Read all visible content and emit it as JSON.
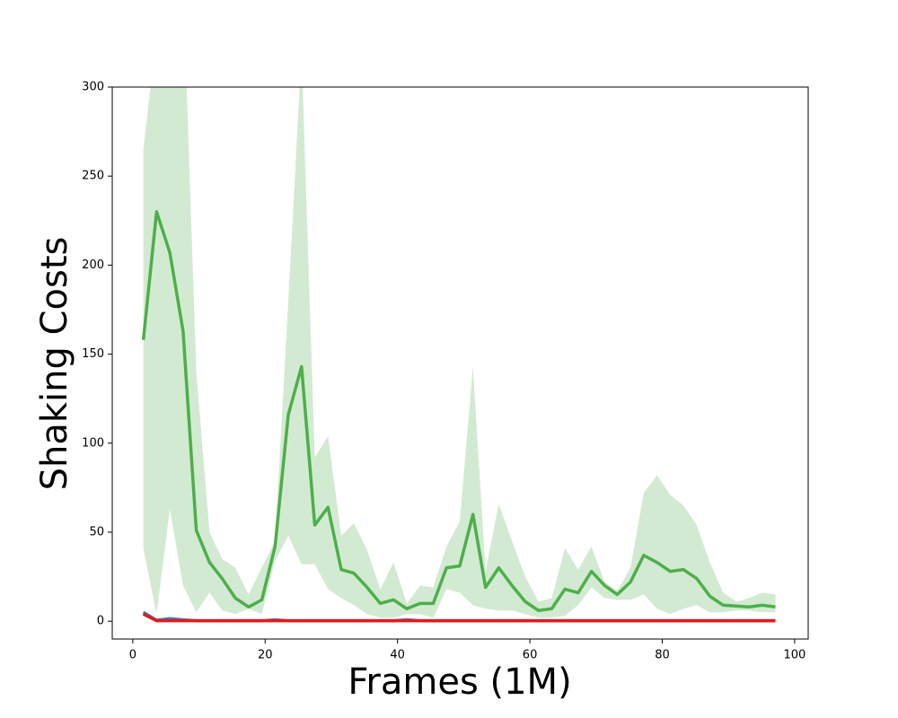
{
  "chart_data": {
    "type": "line",
    "xlabel": "Frames (1M)",
    "ylabel": "Shaking Costs",
    "x": [
      1.6,
      3.6,
      5.6,
      7.6,
      9.6,
      11.6,
      13.5,
      15.5,
      17.5,
      19.5,
      21.5,
      23.5,
      25.5,
      27.5,
      29.5,
      31.5,
      33.4,
      35.4,
      37.4,
      39.4,
      41.4,
      43.4,
      45.4,
      47.4,
      49.4,
      51.4,
      53.3,
      55.3,
      57.3,
      59.3,
      61.3,
      63.3,
      65.3,
      67.3,
      69.3,
      71.3,
      73.2,
      75.2,
      77.2,
      79.2,
      81.2,
      83.2,
      85.2,
      87.2,
      89.2,
      91.2,
      93.1,
      95.1,
      97.1
    ],
    "series": [
      {
        "color": "#4daf4a",
        "band_color": "#d3ead2",
        "values": [
          158,
          230,
          207,
          163,
          51,
          33,
          24,
          13,
          8,
          12,
          42,
          116,
          143,
          54,
          64,
          29,
          27,
          19,
          10,
          12,
          7,
          10,
          10,
          30,
          31,
          60,
          19,
          30,
          20,
          11,
          6,
          7,
          18,
          16,
          28,
          20,
          15,
          22,
          37,
          33,
          28,
          29,
          24,
          14,
          9,
          8.5,
          8,
          9,
          8
        ],
        "upper": [
          265,
          330,
          340,
          360,
          140,
          50,
          35,
          30,
          15,
          30,
          45,
          180,
          320,
          92,
          104,
          48,
          55,
          40,
          18,
          33,
          10,
          20,
          19,
          42,
          56,
          143,
          28,
          66,
          45,
          25,
          11,
          13,
          41,
          29,
          42,
          22,
          17,
          30,
          72,
          82,
          71,
          65,
          54,
          33,
          16,
          11,
          13,
          16,
          15
        ],
        "lower": [
          41,
          4,
          63,
          20,
          5,
          16,
          6,
          4,
          7,
          4,
          34,
          48,
          32,
          32,
          18,
          13,
          9,
          4,
          2,
          2,
          4,
          4,
          2,
          18,
          16,
          9,
          7,
          6,
          6,
          4,
          2,
          2,
          3,
          9,
          19,
          13,
          12,
          12,
          15,
          7,
          4,
          7,
          9,
          5,
          5,
          6,
          6,
          5,
          5
        ]
      },
      {
        "color": "#377eb8",
        "values": [
          5,
          0.5,
          1.5,
          0.8,
          0.3,
          0.3,
          0.3,
          0.3,
          0.3,
          0.3,
          0.8,
          0.3,
          0.3,
          0.3,
          0.3,
          0.3,
          0.3,
          0.3,
          0.3,
          0.3,
          0.8,
          0.3,
          0.3,
          0.3,
          0.3,
          0.3,
          0.3,
          0.3,
          0.3,
          0.3,
          0.3,
          0.3,
          0.3,
          0.3,
          0.3,
          0.3,
          0.3,
          0.3,
          0.3,
          0.3,
          0.3,
          0.3,
          0.3,
          0.3,
          0.3,
          0.3,
          0.3,
          0.3,
          0.3
        ]
      },
      {
        "color": "#e41a1c",
        "values": [
          4,
          0.3,
          0.3,
          0.3,
          0.3,
          0.3,
          0.3,
          0.3,
          0.3,
          0.3,
          0.3,
          0.3,
          0.3,
          0.3,
          0.3,
          0.3,
          0.3,
          0.3,
          0.3,
          0.3,
          0.3,
          0.3,
          0.3,
          0.3,
          0.3,
          0.3,
          0.3,
          0.3,
          0.3,
          0.3,
          0.3,
          0.3,
          0.3,
          0.3,
          0.3,
          0.3,
          0.3,
          0.3,
          0.3,
          0.3,
          0.3,
          0.3,
          0.3,
          0.3,
          0.3,
          0.3,
          0.3,
          0.3,
          0.3
        ]
      }
    ],
    "xlim": [
      -3.1,
      102.05
    ],
    "ylim": [
      -10,
      300
    ],
    "xticks": [
      0,
      20,
      40,
      60,
      80,
      100
    ],
    "yticks": [
      0,
      50,
      100,
      150,
      200,
      250,
      300
    ]
  }
}
